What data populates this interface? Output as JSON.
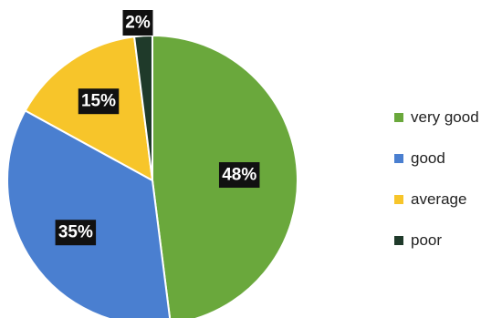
{
  "chart_data": {
    "type": "pie",
    "slices": [
      {
        "label": "very good",
        "value": 48,
        "display": "48%",
        "color": "#6aa83c"
      },
      {
        "label": "good",
        "value": 35,
        "display": "35%",
        "color": "#4a7fd0"
      },
      {
        "label": "average",
        "value": 15,
        "display": "15%",
        "color": "#f7c52a"
      },
      {
        "label": "poor",
        "value": 2,
        "display": "2%",
        "color": "#1f3a2a"
      }
    ],
    "start_angle_deg": 0,
    "direction": "clockwise",
    "legend_position": "right",
    "title": ""
  }
}
